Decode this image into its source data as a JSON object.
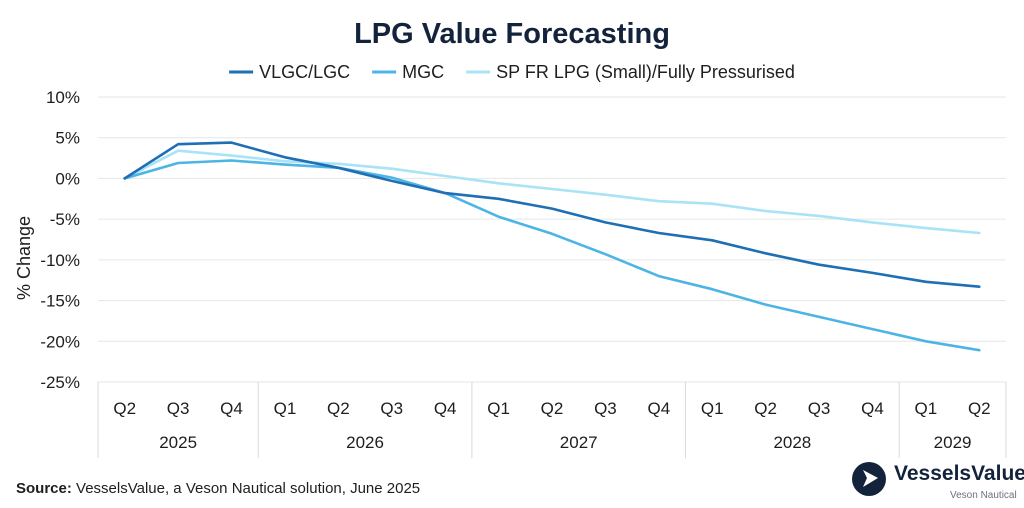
{
  "chart_data": {
    "type": "line",
    "title": "LPG Value Forecasting",
    "ylabel": "% Change",
    "xlabel": "",
    "ylim": [
      -25,
      10
    ],
    "yticks": [
      10,
      5,
      0,
      -5,
      -10,
      -15,
      -20,
      -25
    ],
    "ytick_labels": [
      "10%",
      "5%",
      "0%",
      "-5%",
      "-10%",
      "-15%",
      "-20%",
      "-25%"
    ],
    "grid": true,
    "legend_position": "top",
    "categories": [
      "Q2",
      "Q3",
      "Q4",
      "Q1",
      "Q2",
      "Q3",
      "Q4",
      "Q1",
      "Q2",
      "Q3",
      "Q4",
      "Q1",
      "Q2",
      "Q3",
      "Q4",
      "Q1",
      "Q2"
    ],
    "year_groups": [
      {
        "label": "2025",
        "start": 0,
        "end": 2
      },
      {
        "label": "2026",
        "start": 3,
        "end": 6
      },
      {
        "label": "2027",
        "start": 7,
        "end": 10
      },
      {
        "label": "2028",
        "start": 11,
        "end": 14
      },
      {
        "label": "2029",
        "start": 15,
        "end": 16
      }
    ],
    "series": [
      {
        "name": "VLGC/LGC",
        "color": "#1f6fb5",
        "values": [
          0,
          4.2,
          4.4,
          2.6,
          1.3,
          -0.3,
          -1.8,
          -2.5,
          -3.7,
          -5.4,
          -6.7,
          -7.6,
          -9.2,
          -10.6,
          -11.6,
          -12.7,
          -13.3
        ]
      },
      {
        "name": "MGC",
        "color": "#4db4e6",
        "values": [
          0,
          1.9,
          2.2,
          1.7,
          1.3,
          0.1,
          -1.8,
          -4.7,
          -6.8,
          -9.3,
          -12.0,
          -13.6,
          -15.5,
          -17.0,
          -18.5,
          -20.0,
          -21.1
        ]
      },
      {
        "name": "SP FR LPG (Small)/Fully Pressurised",
        "color": "#a8e3f7",
        "values": [
          0,
          3.4,
          2.8,
          2.1,
          1.8,
          1.2,
          0.3,
          -0.6,
          -1.3,
          -2.0,
          -2.8,
          -3.1,
          -4.0,
          -4.6,
          -5.4,
          -6.1,
          -6.7
        ]
      }
    ]
  },
  "footer": {
    "source_label": "Source:",
    "source_text": "VesselsValue, a Veson Nautical solution, June 2025"
  },
  "logo": {
    "name": "VesselsValue",
    "sub": "Veson Nautical",
    "icon": "triangle-play-icon"
  }
}
